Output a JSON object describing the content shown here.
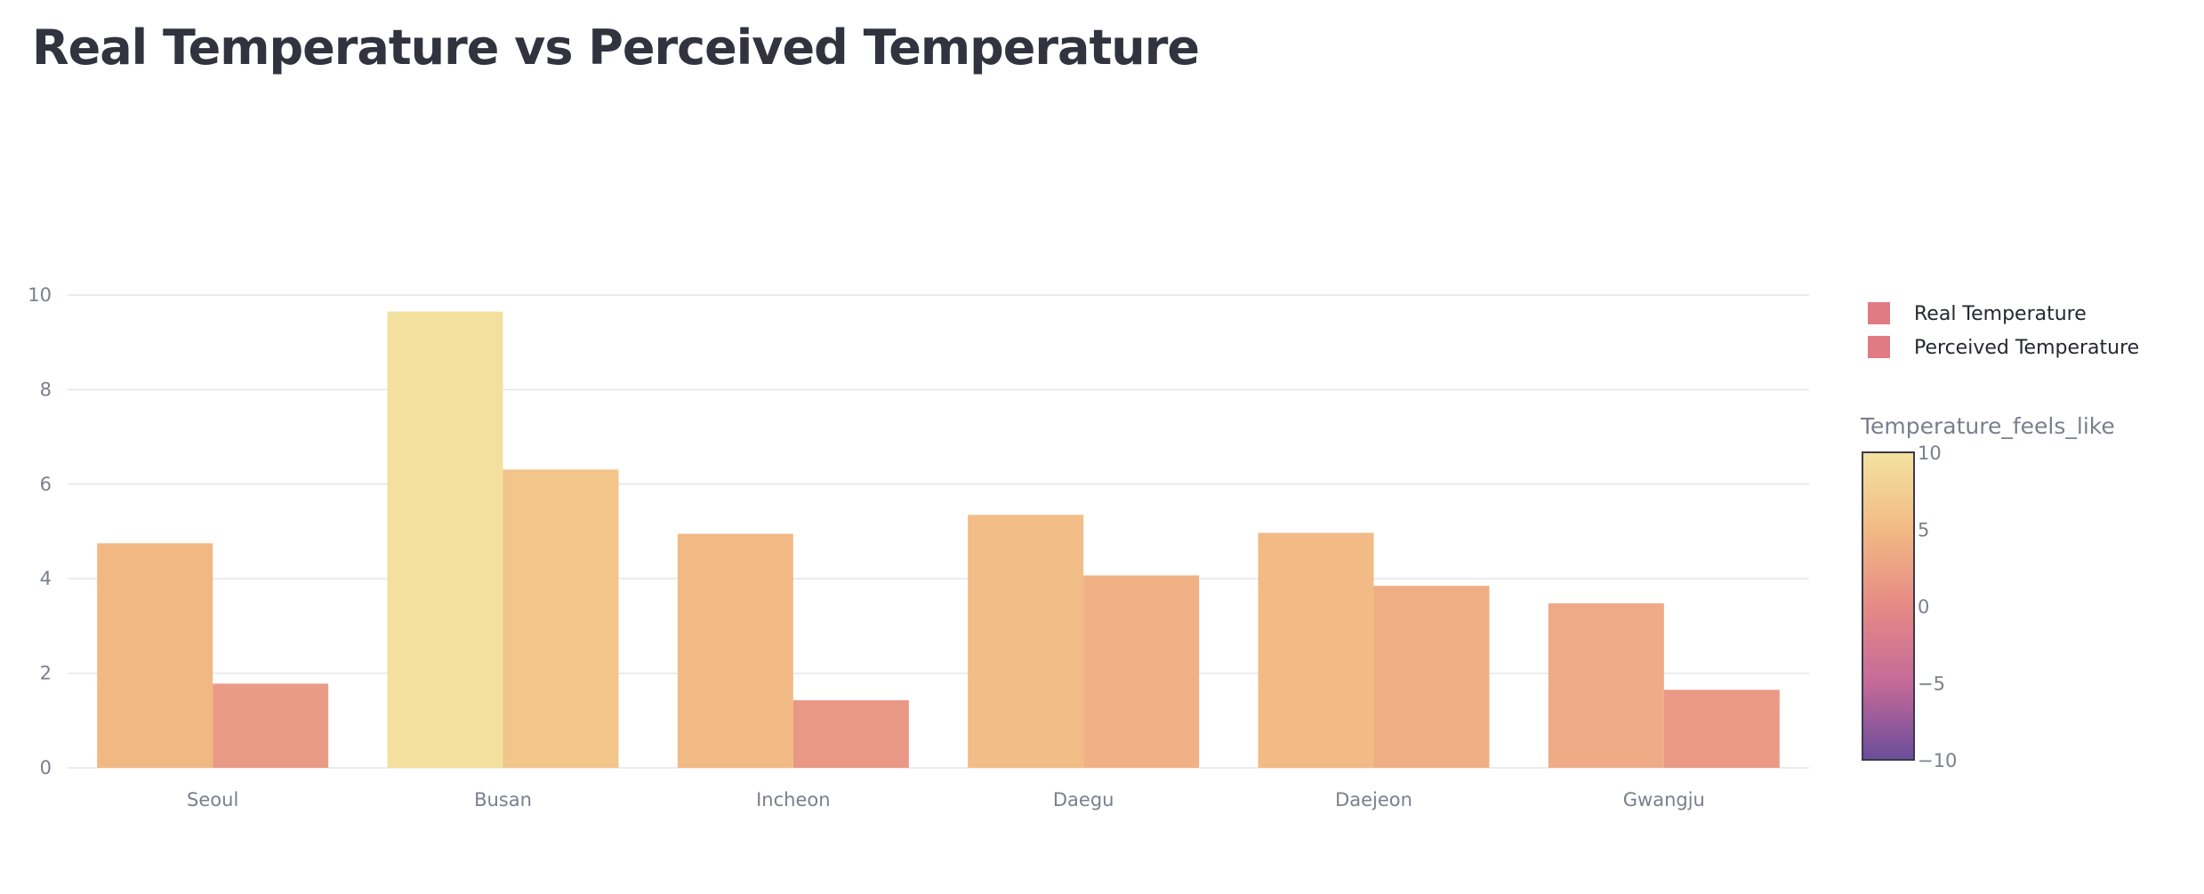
{
  "page": {
    "title": "Real Temperature vs Perceived Temperature"
  },
  "chart_data": {
    "type": "bar",
    "mode": "grouped",
    "categories": [
      "Seoul",
      "Busan",
      "Incheon",
      "Daegu",
      "Daejeon",
      "Gwangju"
    ],
    "series": [
      {
        "name": "Real Temperature",
        "values": [
          4.75,
          9.65,
          4.95,
          5.35,
          4.97,
          3.48
        ]
      },
      {
        "name": "Perceived Temperature",
        "values": [
          1.78,
          6.31,
          1.43,
          4.07,
          3.85,
          1.65
        ]
      }
    ],
    "ylim": [
      0,
      10.7
    ],
    "yticks": [
      0,
      2,
      4,
      6,
      8,
      10
    ],
    "grid": true,
    "legend": {
      "position": "top-right",
      "swatch_color": "#e07b84"
    },
    "colorbar": {
      "title": "Temperature_feels_like",
      "range": [
        -10,
        10
      ],
      "ticks": [
        10,
        5,
        0,
        -5,
        -10
      ],
      "tick_labels": [
        "10",
        "5",
        "0",
        "−5",
        "−10"
      ],
      "colorscale": [
        "#6b4c9a",
        "#c56a99",
        "#e68a86",
        "#f2ba84",
        "#f3e3a0"
      ]
    },
    "colors": {
      "grid": "#e6e6ea",
      "axis_text": "#7a7f8c"
    }
  }
}
